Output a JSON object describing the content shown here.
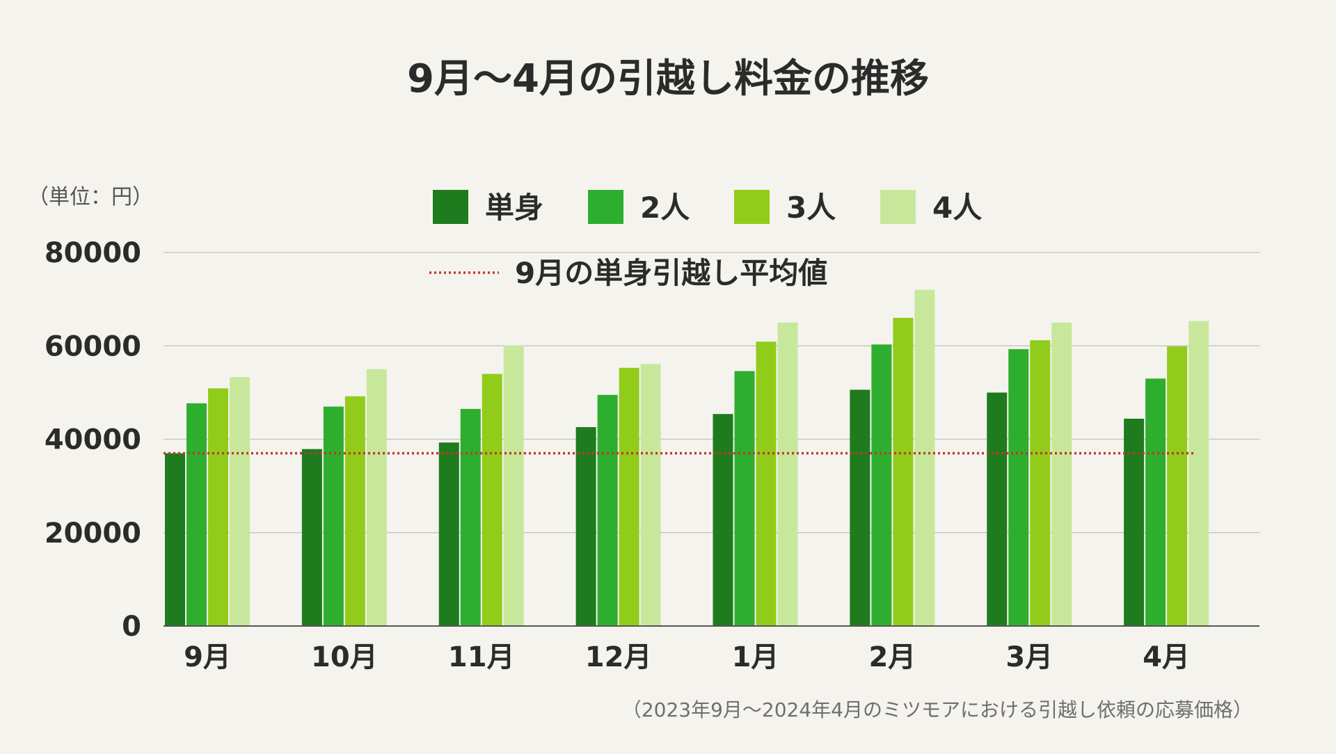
{
  "chart_data": {
    "type": "bar",
    "title": "9月〜4月の引越し料金の推移",
    "unit_label": "（単位：円）",
    "source_note": "（2023年9月〜2024年4月のミツモアにおける引越し依頼の応募価格）",
    "categories": [
      "9月",
      "10月",
      "11月",
      "12月",
      "1月",
      "2月",
      "3月",
      "4月"
    ],
    "series": [
      {
        "name": "単身",
        "color": "#1e7b1e",
        "values": [
          37000,
          37900,
          39300,
          42600,
          45400,
          50600,
          50000,
          44400
        ]
      },
      {
        "name": "2人",
        "color": "#2eae2e",
        "values": [
          47700,
          47000,
          46500,
          49500,
          54600,
          60300,
          59300,
          53000
        ]
      },
      {
        "name": "3人",
        "color": "#92cc1a",
        "values": [
          50900,
          49200,
          54000,
          55300,
          60900,
          66000,
          61200,
          59900
        ]
      },
      {
        "name": "4人",
        "color": "#c7e89b",
        "values": [
          53300,
          55000,
          60100,
          56100,
          65000,
          72000,
          65000,
          65300
        ]
      }
    ],
    "reference_line": {
      "label": "9月の単身引越し平均値",
      "value": 37000,
      "color": "#c0392b",
      "style": "dotted"
    },
    "y_ticks": [
      0,
      20000,
      40000,
      60000,
      80000
    ],
    "ylim": [
      0,
      80000
    ],
    "grid": true,
    "legend_position": "top"
  }
}
